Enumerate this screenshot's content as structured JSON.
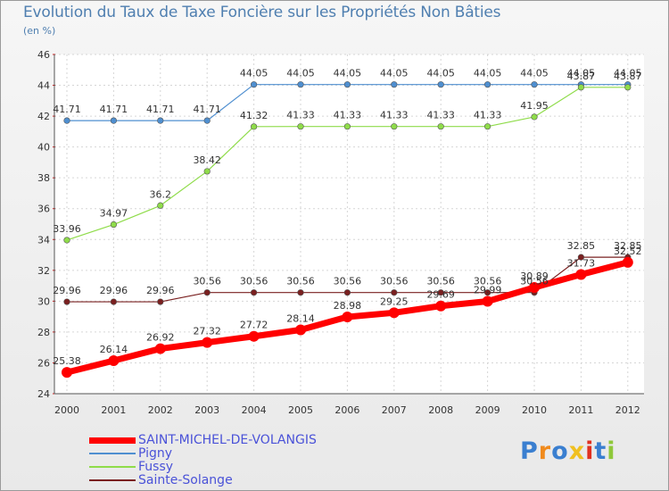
{
  "title": "Evolution du Taux de Taxe Foncière sur les Propriétés Non Bâties",
  "unit": "(en %)",
  "logo_text": "Proxiti",
  "chart_data": {
    "type": "line",
    "title": "Evolution du Taux de Taxe Foncière sur les Propriétés Non Bâties",
    "ylabel": "(en %)",
    "xlabel": "",
    "x": [
      "2000",
      "2001",
      "2002",
      "2003",
      "2004",
      "2005",
      "2006",
      "2007",
      "2008",
      "2009",
      "2010",
      "2011",
      "2012"
    ],
    "ylim": [
      24,
      46
    ],
    "yticks": [
      24,
      26,
      28,
      30,
      32,
      34,
      36,
      38,
      40,
      42,
      44,
      46
    ],
    "grid": true,
    "legend_position": "bottom-left",
    "series": [
      {
        "name": "SAINT-MICHEL-DE-VOLANGIS",
        "color": "#ff0000",
        "values": [
          25.38,
          26.14,
          26.92,
          27.32,
          27.72,
          28.14,
          28.98,
          29.25,
          29.69,
          29.99,
          30.89,
          31.73,
          32.52
        ],
        "labels": [
          "25.38",
          "26.14",
          "26.92",
          "27.32",
          "27.72",
          "28.14",
          "28.98",
          "29.25",
          "29.69",
          "29.99",
          "30.89",
          "31.73",
          "32.52"
        ]
      },
      {
        "name": "Pigny",
        "color": "#4f8fd0",
        "values": [
          41.71,
          41.71,
          41.71,
          41.71,
          44.05,
          44.05,
          44.05,
          44.05,
          44.05,
          44.05,
          44.05,
          44.05,
          44.05
        ],
        "labels": [
          "41.71",
          "41.71",
          "41.71",
          "41.71",
          "44.05",
          "44.05",
          "44.05",
          "44.05",
          "44.05",
          "44.05",
          "44.05",
          "44.05",
          "44.05"
        ]
      },
      {
        "name": "Fussy",
        "color": "#8fdc4a",
        "values": [
          33.96,
          34.97,
          36.2,
          38.42,
          41.32,
          41.33,
          41.33,
          41.33,
          41.33,
          41.33,
          41.95,
          43.87,
          43.87
        ],
        "labels": [
          "33.96",
          "34.97",
          "36.2",
          "38.42",
          "41.32",
          "41.33",
          "41.33",
          "41.33",
          "41.33",
          "41.33",
          "41.95",
          "43.87",
          "43.87"
        ]
      },
      {
        "name": "Sainte-Solange",
        "color": "#7a2020",
        "values": [
          29.96,
          29.96,
          29.96,
          30.56,
          30.56,
          30.56,
          30.56,
          30.56,
          30.56,
          30.56,
          30.56,
          32.85,
          32.85
        ],
        "labels": [
          "29.96",
          "29.96",
          "29.96",
          "30.56",
          "30.56",
          "30.56",
          "30.56",
          "30.56",
          "30.56",
          "30.56",
          "30.56",
          "32.85",
          "32.85"
        ]
      }
    ]
  }
}
